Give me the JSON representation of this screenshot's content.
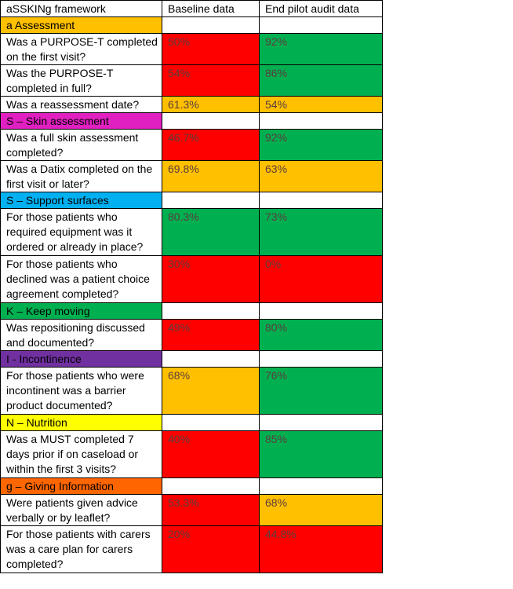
{
  "table": {
    "headers": [
      "aSSKINg framework",
      "Baseline data",
      "End pilot audit data"
    ],
    "sections": [
      {
        "title": "a Assessment",
        "color": "#ffc000",
        "rows": [
          {
            "q": "Was a PURPOSE-T completed on the first visit?",
            "baseline": "50%",
            "baseline_status": "red",
            "end": "92%",
            "end_status": "green"
          },
          {
            "q": "Was the PURPOSE-T completed in full?",
            "baseline": "54%",
            "baseline_status": "red",
            "end": "86%",
            "end_status": "green"
          },
          {
            "q": "Was a reassessment date?",
            "baseline": "61.3%",
            "baseline_status": "amber",
            "end": "54%",
            "end_status": "amber"
          }
        ]
      },
      {
        "title": "S – Skin assessment",
        "color": "#e020c0",
        "rows": [
          {
            "q": "Was a full skin assessment completed?",
            "baseline": "46.7%",
            "baseline_status": "red",
            "end": "92%",
            "end_status": "green"
          },
          {
            "q": "Was a Datix completed on the first visit or later?",
            "baseline": "69.8%",
            "baseline_status": "amber",
            "end": "63%",
            "end_status": "amber"
          }
        ]
      },
      {
        "title": "S – Support surfaces",
        "color": "#00b0f0",
        "rows": [
          {
            "q": "For those patients who required equipment was it ordered or already in place?",
            "baseline": "80.3%",
            "baseline_status": "green",
            "end": "73%",
            "end_status": "green"
          },
          {
            "q": "For those patients who declined was a patient choice agreement completed?",
            "baseline": "30%",
            "baseline_status": "red",
            "end": "0%",
            "end_status": "red"
          }
        ]
      },
      {
        "title": "K – Keep moving",
        "color": "#00b050",
        "rows": [
          {
            "q": "Was repositioning discussed and documented?",
            "baseline": "49%",
            "baseline_status": "red",
            "end": "80%",
            "end_status": "green"
          }
        ]
      },
      {
        "title": "I - Incontinence",
        "color": "#7030a0",
        "rows": [
          {
            "q": "For those patients who were incontinent was a barrier product documented?",
            "baseline": "68%",
            "baseline_status": "amber",
            "end": "76%",
            "end_status": "green"
          }
        ]
      },
      {
        "title": "N – Nutrition",
        "color": "#ffff00",
        "rows": [
          {
            "q": "Was a MUST completed 7 days prior if on caseload or within the first 3 visits?",
            "baseline": "40%",
            "baseline_status": "red",
            "end": "85%",
            "end_status": "green"
          }
        ]
      },
      {
        "title": "g – Giving Information",
        "color": "#ff6600",
        "rows": [
          {
            "q": "Were patients given advice verbally or by leaflet?",
            "baseline": "53.3%",
            "baseline_status": "red",
            "end": "68%",
            "end_status": "amber"
          },
          {
            "q": "For those patients with carers was a care plan for carers completed?",
            "baseline": "20%",
            "baseline_status": "red",
            "end": "44.8%",
            "end_status": "red"
          }
        ]
      }
    ]
  },
  "colors": {
    "green": "#00b050",
    "red": "#ff0000",
    "amber": "#ffc000"
  }
}
